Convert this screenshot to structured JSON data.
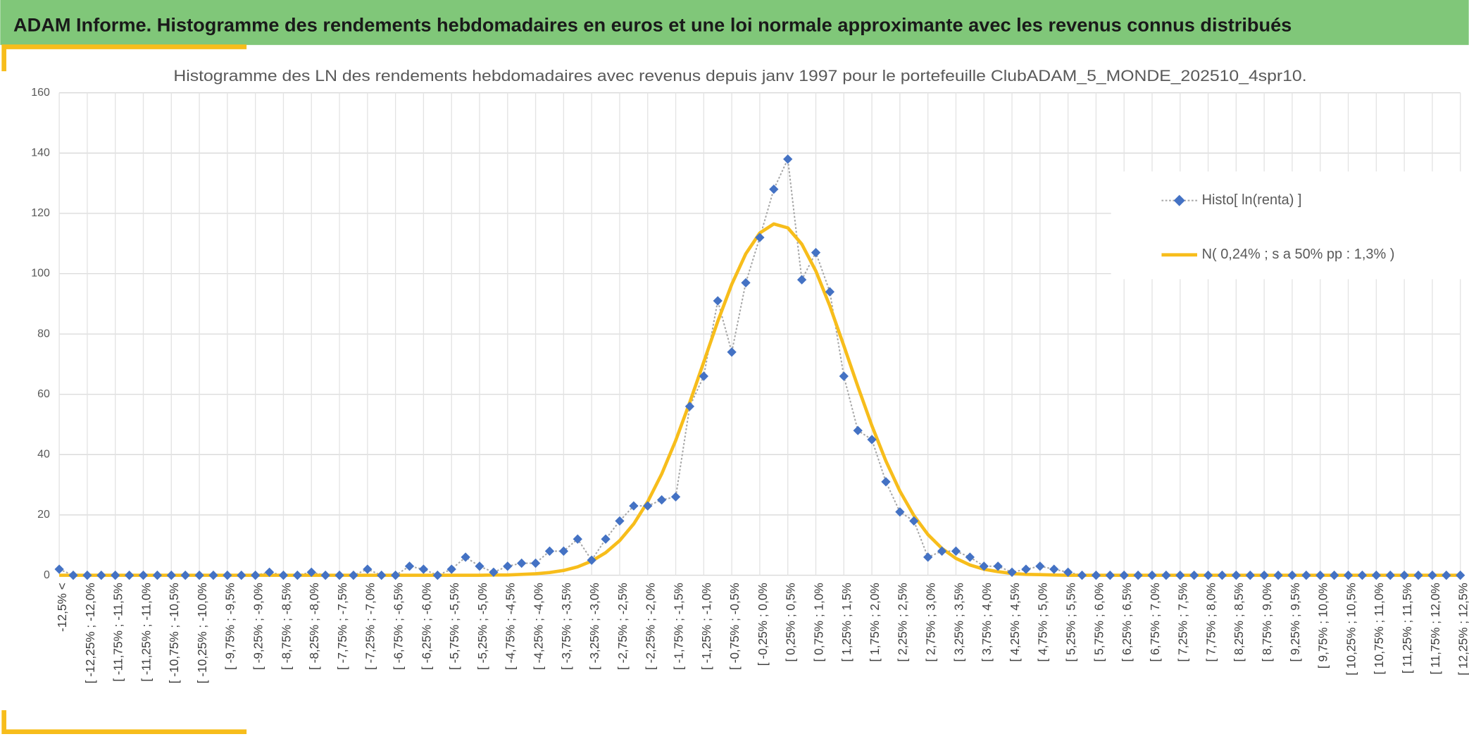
{
  "header": {
    "title": "ADAM Informe. Histogramme des rendements hebdomadaires en euros et une loi normale approximante avec les revenus connus distribués"
  },
  "chart_data": {
    "type": "line",
    "title": "Histogramme des LN des rendements hebdomadaires avec revenus depuis janv 1997 pour le portefeuille ClubADAM_5_MONDE_202510_4spr10.",
    "categories": [
      "-12,5% <",
      null,
      "[ -12,25% ; -12,0%",
      null,
      "[ -11,75% ; -11,5%",
      null,
      "[ -11,25% ; -11,0%",
      null,
      "[ -10,75% ; -10,5%",
      null,
      "[ -10,25% ; -10,0%",
      null,
      "[ -9,75% ; -9,5%",
      null,
      "[ -9,25% ; -9,0%",
      null,
      "[ -8,75% ; -8,5%",
      null,
      "[ -8,25% ; -8,0%",
      null,
      "[ -7,75% ; -7,5%",
      null,
      "[ -7,25% ; -7,0%",
      null,
      "[ -6,75% ; -6,5%",
      null,
      "[ -6,25% ; -6,0%",
      null,
      "[ -5,75% ; -5,5%",
      null,
      "[ -5,25% ; -5,0%",
      null,
      "[ -4,75% ; -4,5%",
      null,
      "[ -4,25% ; -4,0%",
      null,
      "[ -3,75% ; -3,5%",
      null,
      "[ -3,25% ; -3,0%",
      null,
      "[ -2,75% ; -2,5%",
      null,
      "[ -2,25% ; -2,0%",
      null,
      "[ -1,75% ; -1,5%",
      null,
      "[ -1,25% ; -1,0%",
      null,
      "[ -0,75% ; -0,5%",
      null,
      "[ -0,25% ; 0,0%",
      null,
      "[ 0,25% ; 0,5%",
      null,
      "[ 0,75% ; 1,0%",
      null,
      "[ 1,25% ; 1,5%",
      null,
      "[ 1,75% ; 2,0%",
      null,
      "[ 2,25% ; 2,5%",
      null,
      "[ 2,75% ; 3,0%",
      null,
      "[ 3,25% ; 3,5%",
      null,
      "[ 3,75% ; 4,0%",
      null,
      "[ 4,25% ; 4,5%",
      null,
      "[ 4,75% ; 5,0%",
      null,
      "[ 5,25% ; 5,5%",
      null,
      "[ 5,75% ; 6,0%",
      null,
      "[ 6,25% ; 6,5%",
      null,
      "[ 6,75% ; 7,0%",
      null,
      "[ 7,25% ; 7,5%",
      null,
      "[ 7,75% ; 8,0%",
      null,
      "[ 8,25% ; 8,5%",
      null,
      "[ 8,75% ; 9,0%",
      null,
      "[ 9,25% ; 9,5%",
      null,
      "[ 9,75% ; 10,0%",
      null,
      "[ 10,25% ; 10,5%",
      null,
      "[ 10,75% ; 11,0%",
      null,
      "[ 11,25% ; 11,5%",
      null,
      "[ 11,75% ; 12,0%",
      null,
      "[ 12,25% ; 12,5%"
    ],
    "series": [
      {
        "name": "Histo[ ln(renta) ]",
        "color": "#4472c4",
        "line_color": "#a5a5a5",
        "values": [
          2,
          0,
          0,
          0,
          0,
          0,
          0,
          0,
          0,
          0,
          0,
          0,
          0,
          0,
          0,
          1,
          0,
          0,
          1,
          0,
          0,
          0,
          2,
          0,
          0,
          3,
          2,
          0,
          2,
          6,
          3,
          1,
          3,
          4,
          4,
          8,
          8,
          12,
          5,
          12,
          18,
          23,
          23,
          25,
          26,
          56,
          66,
          91,
          74,
          97,
          112,
          128,
          138,
          98,
          107,
          94,
          66,
          48,
          45,
          31,
          21,
          18,
          6,
          8,
          8,
          6,
          3,
          3,
          1,
          2,
          3,
          2,
          1,
          0,
          0,
          0,
          0,
          0,
          0,
          0,
          0,
          0,
          0,
          0,
          0,
          0,
          0,
          0,
          0,
          0,
          0,
          0,
          0,
          0,
          0,
          0,
          0,
          0,
          0,
          0,
          0
        ]
      },
      {
        "name": "N( 0,24% ; s a 50% pp : 1,3% )",
        "color": "#f7bd1b",
        "values": [
          0,
          0,
          0,
          0,
          0,
          0,
          0,
          0,
          0,
          0,
          0,
          0,
          0,
          0,
          0,
          0,
          0,
          0,
          0,
          0,
          0,
          0,
          0,
          0,
          0,
          0,
          0,
          0,
          0,
          0,
          0,
          0.1,
          0.1,
          0.3,
          0.5,
          0.9,
          1.6,
          2.8,
          4.7,
          7.5,
          11.5,
          17,
          24.4,
          33.6,
          44.7,
          57.3,
          70.7,
          84.2,
          96.5,
          106.6,
          113.5,
          116.5,
          115.2,
          109.8,
          100.9,
          89.3,
          76.1,
          62.6,
          49.6,
          37.9,
          27.9,
          19.8,
          13.5,
          8.9,
          5.6,
          3.4,
          2,
          1.2,
          0.6,
          0.3,
          0.2,
          0.1,
          0,
          0,
          0,
          0,
          0,
          0,
          0,
          0,
          0,
          0,
          0,
          0,
          0,
          0,
          0,
          0,
          0,
          0,
          0,
          0,
          0,
          0,
          0,
          0,
          0,
          0,
          0,
          0,
          0
        ]
      }
    ],
    "ylim": [
      0,
      160
    ],
    "yticks": [
      0,
      20,
      40,
      60,
      80,
      100,
      120,
      140,
      160
    ],
    "grid": true
  }
}
